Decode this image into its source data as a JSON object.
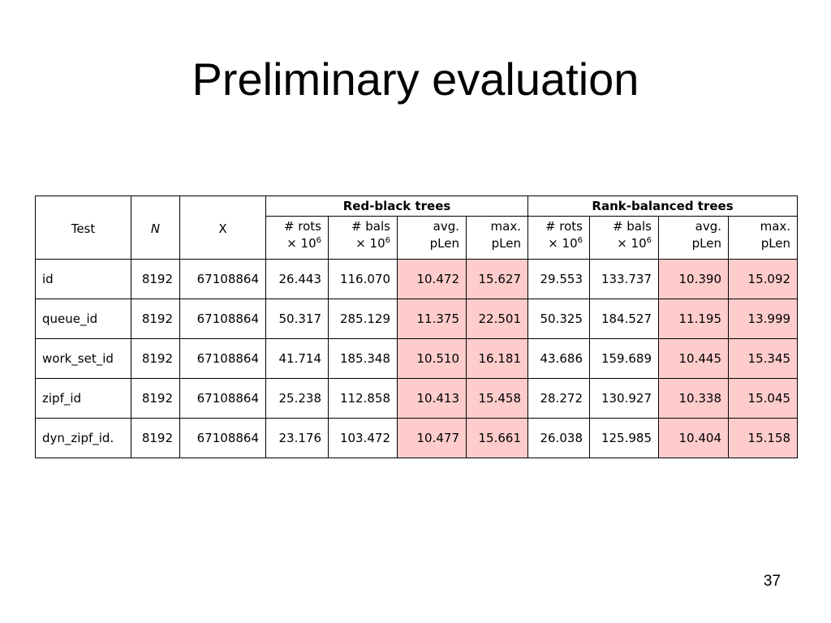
{
  "slide": {
    "title": "Preliminary evaluation",
    "page_number": "37"
  },
  "table": {
    "head": {
      "test": "Test",
      "n": "N",
      "x": "X",
      "groups": [
        "Red-black trees",
        "Rank-balanced trees"
      ],
      "subcols": [
        {
          "top": "# rots",
          "bottom_prefix": "× 10",
          "sup": "6"
        },
        {
          "top": "# bals",
          "bottom_prefix": "× 10",
          "sup": "6"
        },
        {
          "top": "avg.",
          "bottom": "pLen"
        },
        {
          "top": "max.",
          "bottom": "pLen"
        },
        {
          "top": "# rots",
          "bottom_prefix": "× 10",
          "sup": "6"
        },
        {
          "top": "# bals",
          "bottom_prefix": "× 10",
          "sup": "6"
        },
        {
          "top": "avg.",
          "bottom": "pLen"
        },
        {
          "top": "max.",
          "bottom": "pLen"
        }
      ]
    },
    "rows": [
      [
        "id",
        "8192",
        "67108864",
        "26.443",
        "116.070",
        "10.472",
        "15.627",
        "29.553",
        "133.737",
        "10.390",
        "15.092"
      ],
      [
        "queue_id",
        "8192",
        "67108864",
        "50.317",
        "285.129",
        "11.375",
        "22.501",
        "50.325",
        "184.527",
        "11.195",
        "13.999"
      ],
      [
        "work_set_id",
        "8192",
        "67108864",
        "41.714",
        "185.348",
        "10.510",
        "16.181",
        "43.686",
        "159.689",
        "10.445",
        "15.345"
      ],
      [
        "zipf_id",
        "8192",
        "67108864",
        "25.238",
        "112.858",
        "10.413",
        "15.458",
        "28.272",
        "130.927",
        "10.338",
        "15.045"
      ],
      [
        "dyn_zipf_id.",
        "8192",
        "67108864",
        "23.176",
        "103.472",
        "10.477",
        "15.661",
        "26.038",
        "125.985",
        "10.404",
        "15.158"
      ]
    ],
    "highlight_color": "#ffcccc"
  }
}
